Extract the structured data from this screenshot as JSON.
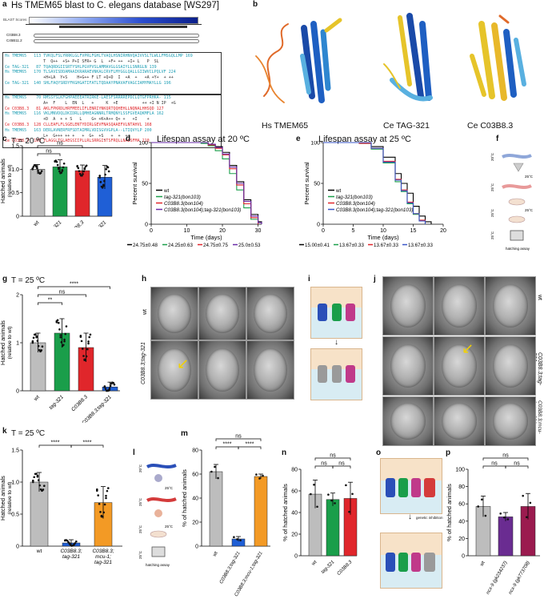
{
  "panels": {
    "a": {
      "label": "a",
      "title": "Hs TMEM65 blast to C. elegans database [WS297]",
      "blast_hdr": "BLAST Scores",
      "blast_axis": [
        "0",
        "50",
        "100",
        "150"
      ],
      "hits": [
        "C03B8.3",
        "C45B11.2"
      ],
      "align1": [
        "Hs TMEM65   113 TVKQLFSLYRRKLGLFVPRLFGHLTVAQLHSNIRHNVQAIVVSLTLWLLFMSGQLLMP 169",
        "                T  Q++  +S+ P+I SFR+ G  L  +F+ ++  +I+ L   P  SL",
        "Ce TAG-321   87 TQAQRDGIISRTYSHLPGVPVSLAMMAVGLGSAIYLLSNRGLN 139",
        "Hs TMEM65   170 TLSAVISDDAMAAIKRARAEVNKALCRVFLMYGGLQALLGIIWVCLPQLVF 224",
        "                +H+LA  Y+S    H+G++ F LT +Q+D  I  +A  +   +A +Y+  + ++",
        "Ce TAG-321  140 SHLFAQYSRDYFKGHGATIFATLTQDAAYPNAVAFVAGCIAMYMAYLLG 196"
      ],
      "align2": [
        "Hs TMEM65    70 RMSSYSLKFGHPAEEEATRIRKE-LAESFSRRRREPDCLQTGFPRHKA- 115",
        "                A+  F    L  EN  L   +     K  +E          ++ +I N IP  +G",
        "Ce C03B8.3   81 AKLFPKRDLHRFMEELIFLENRIYNKQRTQQHEHLLNQNALHHSQD 127",
        "Hs TMEM65   116 VKLMNVDQLDKIDRLLQMHEAGNNRLTRMQNYLSSFGVEAQKMFLA 162",
        "                +D  A  + + S   L    G+ +K+A++ Q+ +   +I    +",
        "Ce C03B8.3  128 CLLEAFLFLSGELENTYDIRLGEVFNASQAAEFVLNTAHVL 168",
        "Hs TMEM65   163 DERLAVNERFRFSDTAIMRLVDISGVVGPLA--LTIQVYLP 200",
        "                L+  G+++ ++ +   +  G+  +S   +  +  ++",
        "Ce C03B8.3  169 YLAGGLTGLAEGSIIPLLRLSRRGISTSFRQLLNALSFMA 210"
      ]
    },
    "b": {
      "label": "b",
      "proteins": [
        "Hs TMEM65",
        "Ce TAG-321",
        "Ce C03B8.3"
      ]
    },
    "c": {
      "label": "c",
      "temp": "T = 20 ºC",
      "ylabel": "Hatched animals",
      "ylabel2": "(relative to wt)",
      "sig": [
        "ns",
        "ns",
        "*"
      ]
    },
    "d": {
      "label": "d",
      "title": "Lifespan assay at 20 ºC",
      "xlabel": "Time (days)",
      "ylabel": "Percent survival",
      "legend": [
        "wt",
        "tag-321(bon103)",
        "C03B8.3(bon104)",
        "C03B8.3(bon104);tag-321(bon103)"
      ],
      "stats": [
        "24.75±0.48",
        "24.25±0.63",
        "24.75±0.75",
        "25.0±0.53"
      ]
    },
    "e": {
      "label": "e",
      "title": "Lifespan assay at 25 ºC",
      "xlabel": "Time (days)",
      "ylabel": "Percent survival",
      "legend": [
        "wt",
        "tag-321(bon103)",
        "C03B8.3(bon104)",
        "C03B8.3(bon104);tag-321(bon103)"
      ],
      "stats": [
        "15.00±0.41",
        "13.67±0.33",
        "13.67±0.33",
        "13.67±0.33"
      ]
    },
    "f": {
      "label": "f",
      "temps": [
        "20°C",
        "25°C",
        "25°C",
        "25°C"
      ],
      "step_temps": [
        "25°C",
        "25°C"
      ],
      "assay": "hatching assay"
    },
    "g": {
      "label": "g",
      "temp": "T = 25 ºC",
      "ylabel": "Hatched animals",
      "ylabel2": "(relative to wt)",
      "sig": [
        "**",
        "ns",
        "****"
      ]
    },
    "h": {
      "label": "h",
      "rows": [
        "wt",
        "C03B8.3;tag-321"
      ]
    },
    "i": {
      "label": "i"
    },
    "j": {
      "label": "j",
      "rows": [
        "wt",
        "C03B8.3;tag-321",
        "C03B8.3;mcu-1; tag-321"
      ]
    },
    "k": {
      "label": "k",
      "temp": "T = 25 ºC",
      "ylabel": "Hatched animals",
      "ylabel2": "(relative to wt)",
      "sig": [
        "****",
        "****"
      ]
    },
    "l": {
      "label": "l",
      "temps": [
        "20°C",
        "25°C",
        "25°C",
        "25°C"
      ],
      "step_temps": [
        "25°C",
        "25°C"
      ],
      "assay": "hatching assay"
    },
    "m": {
      "label": "m",
      "ylabel": "% of hatched animals",
      "sig": [
        "ns",
        "****",
        "****"
      ]
    },
    "n": {
      "label": "n",
      "ylabel": "% of hatched animals",
      "sig": [
        "ns",
        "ns",
        "ns"
      ]
    },
    "o": {
      "label": "o",
      "arrow_text": "genetic inhibition"
    },
    "p": {
      "label": "p",
      "ylabel": "% of hatched animals",
      "sig": [
        "ns",
        "ns",
        "ns"
      ]
    }
  },
  "chart_data": [
    {
      "panel": "c",
      "type": "bar",
      "categories": [
        "wt",
        "tag-321",
        "C03B8.3",
        "C03B8.3;tag-321"
      ],
      "values": [
        1.0,
        1.05,
        0.97,
        0.83
      ],
      "errors": [
        0.1,
        0.15,
        0.12,
        0.25
      ],
      "colors": [
        "#bdbdbd",
        "#1a9e4a",
        "#e0262b",
        "#1f5fd6"
      ],
      "ylim": [
        0,
        1.5
      ],
      "yticks": [
        "0",
        "0.5",
        "1.0",
        "1.5"
      ]
    },
    {
      "panel": "g",
      "type": "bar",
      "categories": [
        "wt",
        "tag-321",
        "C03B8.3",
        "C03B8.3;tag-321"
      ],
      "values": [
        1.0,
        1.2,
        0.9,
        0.08
      ],
      "errors": [
        0.2,
        0.3,
        0.3,
        0.1
      ],
      "colors": [
        "#bdbdbd",
        "#1a9e4a",
        "#e0262b",
        "#1f5fd6"
      ],
      "ylim": [
        0,
        2
      ],
      "yticks": [
        "0",
        "1",
        "2"
      ]
    },
    {
      "panel": "k",
      "type": "bar",
      "categories": [
        "wt",
        "C03B8.3; tag-321",
        "C03B8.3; mcu-1; tag-321"
      ],
      "values": [
        1.0,
        0.05,
        0.68
      ],
      "errors": [
        0.15,
        0.05,
        0.25
      ],
      "colors": [
        "#bdbdbd",
        "#1f5fd6",
        "#f39a25"
      ],
      "ylim": [
        0,
        1.5
      ],
      "yticks": [
        "0",
        "0.5",
        "1.0",
        "1.5"
      ]
    },
    {
      "panel": "m",
      "type": "bar",
      "categories": [
        "wt",
        "C03B8.3;tag-321",
        "C03B8.3;mcu-1;tag-321"
      ],
      "values": [
        62,
        6,
        58
      ],
      "errors": [
        6,
        2,
        2
      ],
      "colors": [
        "#bdbdbd",
        "#1f5fd6",
        "#f39a25"
      ],
      "ylim": [
        0,
        80
      ],
      "yticks": [
        "0",
        "20",
        "40",
        "60",
        "80"
      ]
    },
    {
      "panel": "n",
      "type": "bar",
      "categories": [
        "wt",
        "tag-321",
        "C03B8.3"
      ],
      "values": [
        57,
        52,
        53
      ],
      "errors": [
        13,
        6,
        15
      ],
      "colors": [
        "#bdbdbd",
        "#1a9e4a",
        "#e0262b"
      ],
      "ylim": [
        0,
        80
      ],
      "yticks": [
        "0",
        "20",
        "40",
        "60",
        "80"
      ]
    },
    {
      "panel": "p",
      "type": "bar",
      "categories": [
        "wt",
        "ncx-9 (gk234237)",
        "ncx-9 (gk773708)"
      ],
      "values": [
        57,
        45,
        57
      ],
      "errors": [
        12,
        5,
        15
      ],
      "colors": [
        "#bdbdbd",
        "#6a2c91",
        "#9b1b4f"
      ],
      "ylim": [
        0,
        100
      ],
      "yticks": [
        "0",
        "20",
        "40",
        "60",
        "80",
        "100"
      ]
    },
    {
      "panel": "d",
      "type": "line",
      "title": "Lifespan assay at 20 ºC",
      "xlabel": "Time (days)",
      "ylabel": "Percent survival",
      "xlim": [
        0,
        31
      ],
      "ylim": [
        0,
        100
      ],
      "xticks": [
        "0",
        "10",
        "20",
        "30"
      ],
      "yticks": [
        "0",
        "50",
        "100"
      ],
      "series": [
        {
          "name": "wt",
          "color": "#000000",
          "x": [
            0,
            14,
            16,
            18,
            20,
            22,
            24,
            26,
            28,
            30,
            31
          ],
          "y": [
            100,
            100,
            98,
            95,
            88,
            72,
            52,
            30,
            12,
            3,
            0
          ]
        },
        {
          "name": "tag-321(bon103)",
          "color": "#1a9e4a",
          "x": [
            0,
            14,
            16,
            18,
            20,
            22,
            24,
            26,
            28,
            30
          ],
          "y": [
            100,
            99,
            96,
            90,
            80,
            62,
            42,
            20,
            6,
            0
          ]
        },
        {
          "name": "C03B8.3(bon104)",
          "color": "#e0262b",
          "x": [
            0,
            14,
            16,
            18,
            20,
            22,
            24,
            26,
            28,
            30
          ],
          "y": [
            100,
            100,
            97,
            93,
            85,
            68,
            48,
            25,
            8,
            0
          ]
        },
        {
          "name": "C03B8.3(bon104);tag-321(bon103)",
          "color": "#6a2ba8",
          "x": [
            0,
            14,
            16,
            18,
            20,
            22,
            24,
            26,
            28,
            30,
            31
          ],
          "y": [
            100,
            100,
            98,
            94,
            86,
            70,
            50,
            28,
            10,
            2,
            0
          ]
        }
      ]
    },
    {
      "panel": "e",
      "type": "line",
      "title": "Lifespan assay at 25 ºC",
      "xlabel": "Time (days)",
      "ylabel": "Percent survival",
      "xlim": [
        0,
        20
      ],
      "ylim": [
        0,
        100
      ],
      "xticks": [
        "0",
        "5",
        "10",
        "15",
        "20"
      ],
      "yticks": [
        "0",
        "50",
        "100"
      ],
      "series": [
        {
          "name": "wt",
          "color": "#000000",
          "x": [
            0,
            6,
            8,
            10,
            12,
            13,
            14,
            15,
            16,
            17,
            18
          ],
          "y": [
            100,
            100,
            95,
            82,
            62,
            50,
            38,
            22,
            10,
            3,
            0
          ]
        },
        {
          "name": "tag-321(bon103)",
          "color": "#1a9e4a",
          "x": [
            0,
            6,
            8,
            10,
            12,
            13,
            14,
            15,
            16,
            17
          ],
          "y": [
            100,
            99,
            92,
            75,
            52,
            40,
            25,
            12,
            4,
            0
          ]
        },
        {
          "name": "C03B8.3(bon104)",
          "color": "#e0262b",
          "x": [
            0,
            6,
            8,
            10,
            12,
            13,
            14,
            15,
            16,
            17
          ],
          "y": [
            100,
            99,
            93,
            77,
            55,
            42,
            27,
            13,
            5,
            0
          ]
        },
        {
          "name": "C03B8.3(bon104);tag-321(bon103)",
          "color": "#3a57c8",
          "x": [
            0,
            6,
            8,
            10,
            12,
            13,
            14,
            15,
            16,
            17
          ],
          "y": [
            100,
            100,
            93,
            76,
            54,
            41,
            26,
            13,
            4,
            0
          ]
        }
      ]
    }
  ]
}
